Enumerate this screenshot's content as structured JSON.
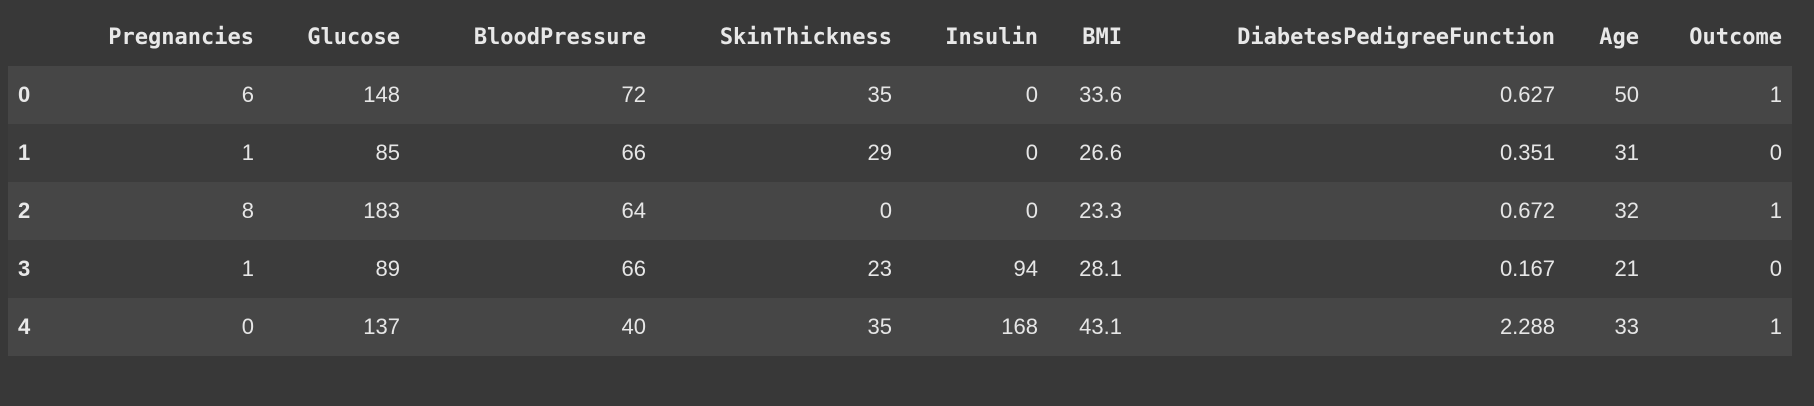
{
  "dataframe": {
    "columns": [
      "Pregnancies",
      "Glucose",
      "BloodPressure",
      "SkinThickness",
      "Insulin",
      "BMI",
      "DiabetesPedigreeFunction",
      "Age",
      "Outcome"
    ],
    "rows": [
      {
        "index": "0",
        "values": [
          "6",
          "148",
          "72",
          "35",
          "0",
          "33.6",
          "0.627",
          "50",
          "1"
        ]
      },
      {
        "index": "1",
        "values": [
          "1",
          "85",
          "66",
          "29",
          "0",
          "26.6",
          "0.351",
          "31",
          "0"
        ]
      },
      {
        "index": "2",
        "values": [
          "8",
          "183",
          "64",
          "0",
          "0",
          "23.3",
          "0.672",
          "32",
          "1"
        ]
      },
      {
        "index": "3",
        "values": [
          "1",
          "89",
          "66",
          "23",
          "94",
          "28.1",
          "0.167",
          "21",
          "0"
        ]
      },
      {
        "index": "4",
        "values": [
          "0",
          "137",
          "40",
          "35",
          "168",
          "43.1",
          "2.288",
          "33",
          "1"
        ]
      }
    ]
  }
}
